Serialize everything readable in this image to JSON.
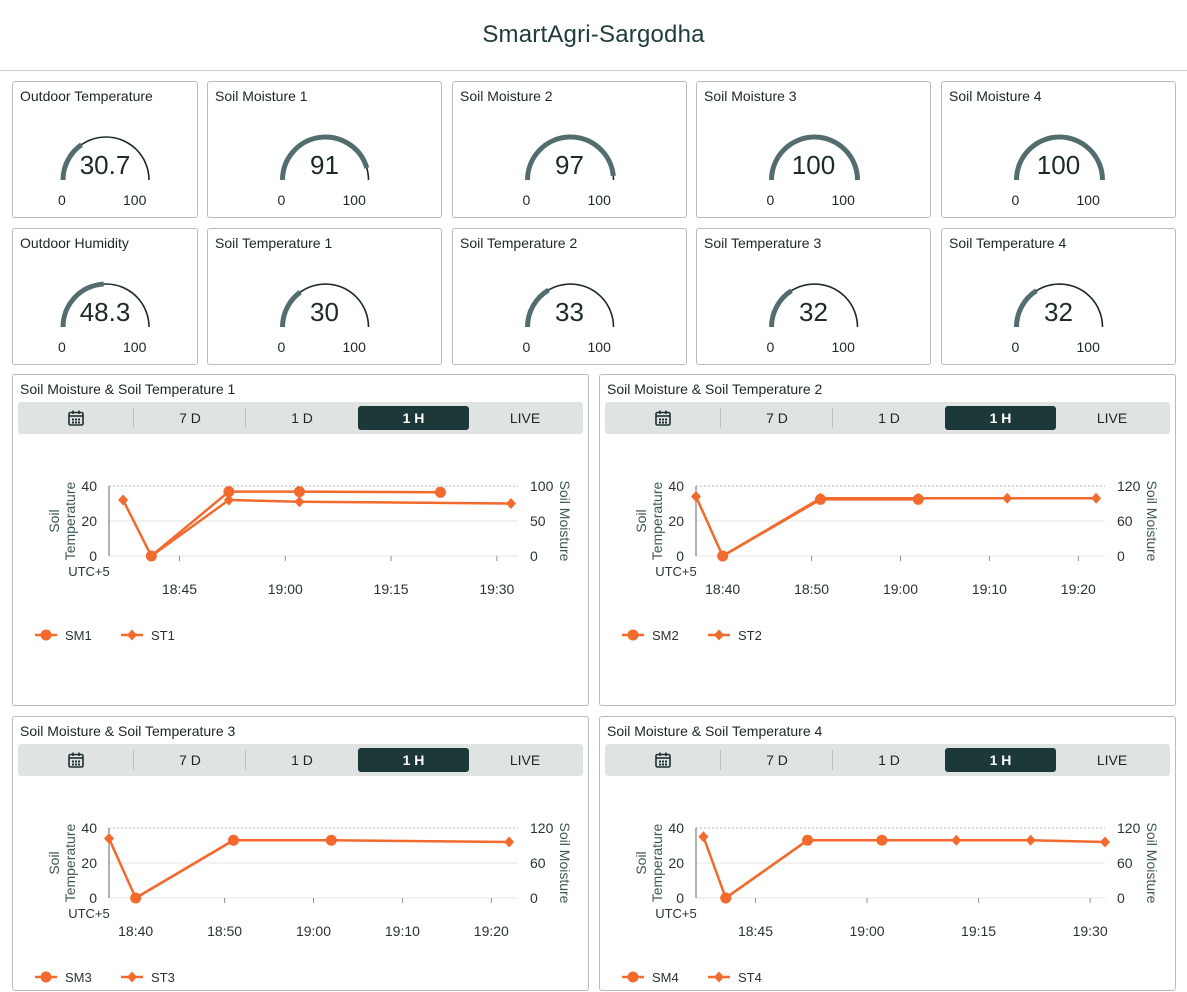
{
  "header": {
    "title": "SmartAgri-Sargodha"
  },
  "gauges": [
    {
      "title": "Outdoor Temperature",
      "value": 30.7,
      "display": "30.7",
      "min": "0",
      "max": "100"
    },
    {
      "title": "Soil Moisture 1",
      "value": 91,
      "display": "91",
      "min": "0",
      "max": "100"
    },
    {
      "title": "Soil Moisture 2",
      "value": 97,
      "display": "97",
      "min": "0",
      "max": "100"
    },
    {
      "title": "Soil Moisture 3",
      "value": 100,
      "display": "100",
      "min": "0",
      "max": "100"
    },
    {
      "title": "Soil Moisture 4",
      "value": 100,
      "display": "100",
      "min": "0",
      "max": "100"
    },
    {
      "title": "Outdoor Humidity",
      "value": 48.3,
      "display": "48.3",
      "min": "0",
      "max": "100"
    },
    {
      "title": "Soil Temperature 1",
      "value": 30,
      "display": "30",
      "min": "0",
      "max": "100"
    },
    {
      "title": "Soil Temperature 2",
      "value": 33,
      "display": "33",
      "min": "0",
      "max": "100"
    },
    {
      "title": "Soil Temperature 3",
      "value": 32,
      "display": "32",
      "min": "0",
      "max": "100"
    },
    {
      "title": "Soil Temperature 4",
      "value": 32,
      "display": "32",
      "min": "0",
      "max": "100"
    }
  ],
  "tabs": [
    "7 D",
    "1 D",
    "1 H",
    "LIVE"
  ],
  "active_tab": "1 H",
  "icons": {
    "calendar": "calendar-icon"
  },
  "colors": {
    "series": "#f26a2d",
    "gauge_fill": "#536d6e",
    "gauge_track": "#1d2929",
    "active_tab": "#1d3838",
    "tab_bar": "#dfe4e3"
  },
  "chart_data": [
    {
      "type": "line",
      "title": "Soil Moisture & Soil Temperature 1",
      "ylabel": "Soil Temperature",
      "y2label": "Soil Moisture",
      "ylim": [
        0,
        40
      ],
      "yticks": [
        "0",
        "20",
        "40"
      ],
      "y2lim": [
        0,
        100
      ],
      "y2ticks": [
        "0",
        "50",
        "100"
      ],
      "timezone": "UTC+5",
      "xlim": [
        "18:35",
        "19:33"
      ],
      "xticks": [
        "18:45",
        "19:00",
        "19:15",
        "19:30"
      ],
      "series": [
        {
          "name": "SM1",
          "axis": "right",
          "marker": "circle",
          "x": [
            "18:41",
            "18:52",
            "19:02",
            "19:22"
          ],
          "y": [
            0,
            92,
            92,
            91
          ]
        },
        {
          "name": "ST1",
          "axis": "left",
          "marker": "diamond",
          "x": [
            "18:37",
            "18:41",
            "18:52",
            "19:02",
            "19:32"
          ],
          "y": [
            32,
            0,
            32,
            31,
            30
          ]
        }
      ]
    },
    {
      "type": "line",
      "title": "Soil Moisture & Soil Temperature 2",
      "ylabel": "Soil Temperature",
      "y2label": "Soil Moisture",
      "ylim": [
        0,
        40
      ],
      "yticks": [
        "0",
        "20",
        "40"
      ],
      "y2lim": [
        0,
        120
      ],
      "y2ticks": [
        "0",
        "60",
        "120"
      ],
      "timezone": "UTC+5",
      "xlim": [
        "18:37",
        "19:23"
      ],
      "xticks": [
        "18:40",
        "18:50",
        "19:00",
        "19:10",
        "19:20"
      ],
      "series": [
        {
          "name": "SM2",
          "axis": "right",
          "marker": "circle",
          "x": [
            "18:40",
            "18:51",
            "19:02"
          ],
          "y": [
            0,
            97,
            97
          ]
        },
        {
          "name": "ST2",
          "axis": "left",
          "marker": "diamond",
          "x": [
            "18:37",
            "18:40",
            "18:51",
            "19:02",
            "19:12",
            "19:22"
          ],
          "y": [
            34,
            0,
            33,
            33,
            33,
            33
          ]
        }
      ]
    },
    {
      "type": "line",
      "title": "Soil Moisture & Soil Temperature 3",
      "ylabel": "Soil Temperature",
      "y2label": "Soil Moisture",
      "ylim": [
        0,
        40
      ],
      "yticks": [
        "0",
        "20",
        "40"
      ],
      "y2lim": [
        0,
        120
      ],
      "y2ticks": [
        "0",
        "60",
        "120"
      ],
      "timezone": "UTC+5",
      "xlim": [
        "18:37",
        "19:23"
      ],
      "xticks": [
        "18:40",
        "18:50",
        "19:00",
        "19:10",
        "19:20"
      ],
      "series": [
        {
          "name": "SM3",
          "axis": "right",
          "marker": "circle",
          "x": [
            "18:40",
            "18:51",
            "19:02"
          ],
          "y": [
            0,
            99,
            99
          ]
        },
        {
          "name": "ST3",
          "axis": "left",
          "marker": "diamond",
          "x": [
            "18:37",
            "18:40",
            "18:51",
            "19:02",
            "19:22"
          ],
          "y": [
            34,
            0,
            33,
            33,
            32
          ]
        }
      ]
    },
    {
      "type": "line",
      "title": "Soil Moisture & Soil Temperature 4",
      "ylabel": "Soil Temperature",
      "y2label": "Soil Moisture",
      "ylim": [
        0,
        40
      ],
      "yticks": [
        "0",
        "20",
        "40"
      ],
      "y2lim": [
        0,
        120
      ],
      "y2ticks": [
        "0",
        "60",
        "120"
      ],
      "timezone": "UTC+5",
      "xlim": [
        "18:37",
        "19:32"
      ],
      "xticks": [
        "18:45",
        "19:00",
        "19:15",
        "19:30"
      ],
      "series": [
        {
          "name": "SM4",
          "axis": "right",
          "marker": "circle",
          "x": [
            "18:41",
            "18:52",
            "19:02"
          ],
          "y": [
            0,
            99,
            99
          ]
        },
        {
          "name": "ST4",
          "axis": "left",
          "marker": "diamond",
          "x": [
            "18:38",
            "18:41",
            "18:52",
            "19:02",
            "19:12",
            "19:22",
            "19:32"
          ],
          "y": [
            35,
            0,
            33,
            33,
            33,
            33,
            32
          ]
        }
      ]
    }
  ]
}
